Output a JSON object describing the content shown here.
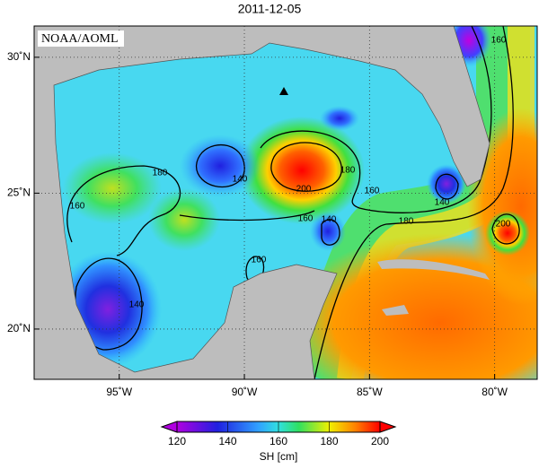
{
  "map": {
    "title": "2011-12-05",
    "credit": "NOAA/AOML",
    "lon_lim": [
      -98.4,
      -78.3
    ],
    "lat_lim": [
      18.15,
      31.15
    ],
    "lon_ticks": [
      {
        "value": -95,
        "label": "95˚W"
      },
      {
        "value": -90,
        "label": "90˚W"
      },
      {
        "value": -85,
        "label": "85˚W"
      },
      {
        "value": -80,
        "label": "80˚W"
      }
    ],
    "lat_ticks": [
      {
        "value": 20,
        "label": "20˚N"
      },
      {
        "value": 25,
        "label": "25˚N"
      },
      {
        "value": 30,
        "label": "30˚N"
      }
    ],
    "contour_labels": [
      180,
      160,
      140,
      200,
      180,
      160,
      160,
      140,
      180,
      140,
      160,
      140,
      200,
      160
    ],
    "colorbar": {
      "label": "SH [cm]",
      "lim": [
        120,
        200
      ],
      "ticks": [
        120,
        140,
        160,
        180,
        200
      ]
    }
  }
}
